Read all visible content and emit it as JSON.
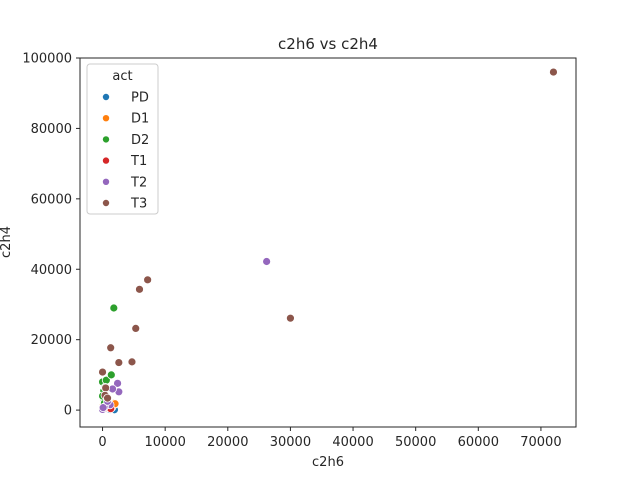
{
  "chart_data": {
    "type": "scatter",
    "title": "c2h6 vs c2h4",
    "xlabel": "c2h6",
    "ylabel": "c2h4",
    "xlim": [
      -3600,
      75600
    ],
    "ylim": [
      -4800,
      100000
    ],
    "x_ticks": [
      0,
      10000,
      20000,
      30000,
      40000,
      50000,
      60000,
      70000
    ],
    "y_ticks": [
      0,
      20000,
      40000,
      60000,
      80000,
      100000
    ],
    "grid": false,
    "legend": {
      "title": "act",
      "placement": "top-left"
    },
    "series": [
      {
        "name": "PD",
        "color": "#1f77b4",
        "points": [
          [
            0,
            200
          ],
          [
            300,
            500
          ],
          [
            800,
            300
          ],
          [
            1200,
            150
          ],
          [
            1900,
            100
          ]
        ]
      },
      {
        "name": "D1",
        "color": "#ff7f0e",
        "points": [
          [
            100,
            1200
          ],
          [
            700,
            700
          ],
          [
            1500,
            800
          ],
          [
            1900,
            2000
          ],
          [
            2000,
            1800
          ]
        ]
      },
      {
        "name": "D2",
        "color": "#2ca02c",
        "points": [
          [
            0,
            8000
          ],
          [
            600,
            8500
          ],
          [
            1400,
            10000
          ],
          [
            1800,
            29000
          ],
          [
            200,
            5500
          ],
          [
            100,
            3500
          ],
          [
            300,
            2000
          ],
          [
            0,
            4000
          ],
          [
            400,
            6500
          ],
          [
            800,
            3000
          ]
        ]
      },
      {
        "name": "T1",
        "color": "#d62728",
        "points": [
          [
            200,
            300
          ],
          [
            900,
            1000
          ],
          [
            500,
            600
          ],
          [
            1300,
            400
          ]
        ]
      },
      {
        "name": "T2",
        "color": "#9467bd",
        "points": [
          [
            26200,
            42200
          ],
          [
            2400,
            7600
          ],
          [
            2600,
            5200
          ],
          [
            1600,
            6000
          ],
          [
            1200,
            1500
          ],
          [
            300,
            900
          ],
          [
            0,
            200
          ],
          [
            100,
            700
          ],
          [
            800,
            2500
          ]
        ]
      },
      {
        "name": "T3",
        "color": "#8c564b",
        "points": [
          [
            72000,
            96000
          ],
          [
            30000,
            26100
          ],
          [
            7200,
            37000
          ],
          [
            5900,
            34300
          ],
          [
            5300,
            23200
          ],
          [
            4700,
            13700
          ],
          [
            2600,
            13500
          ],
          [
            1300,
            17700
          ],
          [
            0,
            10800
          ],
          [
            500,
            6300
          ],
          [
            400,
            4200
          ],
          [
            800,
            3400
          ]
        ]
      }
    ]
  }
}
